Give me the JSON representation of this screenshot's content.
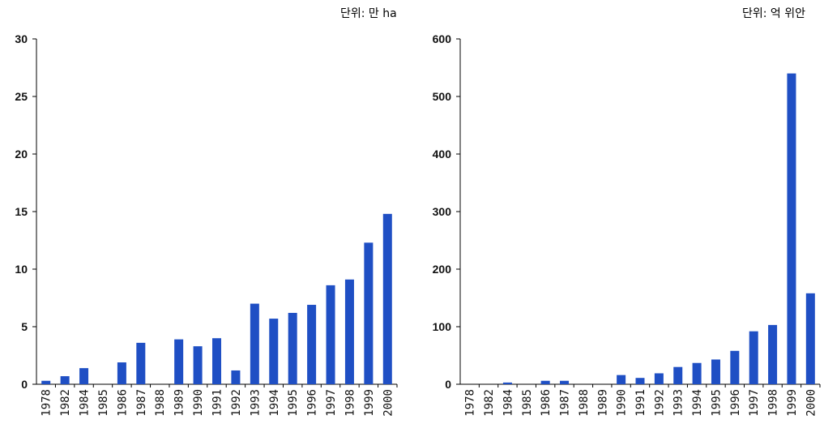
{
  "chart_data": [
    {
      "type": "bar",
      "unit_label": "단위: 만 ha",
      "categories": [
        "1978",
        "1982",
        "1984",
        "1985",
        "1986",
        "1987",
        "1988",
        "1989",
        "1990",
        "1991",
        "1992",
        "1993",
        "1994",
        "1995",
        "1996",
        "1997",
        "1998",
        "1999",
        "2000"
      ],
      "values": [
        0.3,
        0.7,
        1.4,
        0,
        1.9,
        3.6,
        0,
        3.9,
        3.3,
        4.0,
        1.2,
        7.0,
        5.7,
        6.2,
        6.9,
        8.6,
        9.1,
        12.3,
        14.8
      ],
      "ylim": [
        0,
        30
      ],
      "yticks": [
        0,
        5,
        10,
        15,
        20,
        25,
        30
      ],
      "bar_color": "#1f4fc4",
      "grid": false
    },
    {
      "type": "bar",
      "unit_label": "단위: 억 위안",
      "categories": [
        "1978",
        "1982",
        "1984",
        "1985",
        "1986",
        "1987",
        "1988",
        "1989",
        "1990",
        "1991",
        "1992",
        "1993",
        "1994",
        "1995",
        "1996",
        "1997",
        "1998",
        "1999",
        "2000"
      ],
      "values": [
        0,
        0,
        3,
        0,
        6,
        6,
        0,
        0,
        16,
        11,
        19,
        30,
        37,
        43,
        58,
        92,
        103,
        540,
        158
      ],
      "ylim": [
        0,
        600
      ],
      "yticks": [
        0,
        100,
        200,
        300,
        400,
        500,
        600
      ],
      "bar_color": "#1f4fc4",
      "grid": false
    }
  ]
}
